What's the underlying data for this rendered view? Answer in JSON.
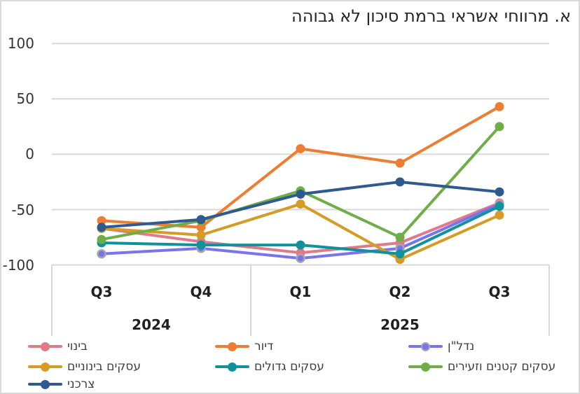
{
  "title": "א. מרווחי אשראי ברמת סיכון לא גבוהה",
  "chart_data": {
    "type": "line",
    "categories": [
      "Q3",
      "Q4",
      "Q1",
      "Q2",
      "Q3"
    ],
    "year_groups": [
      {
        "label": "2024",
        "span": 2
      },
      {
        "label": "2025",
        "span": 3
      }
    ],
    "y_ticks": [
      100,
      50,
      0,
      -50,
      -100
    ],
    "ylim": [
      -100,
      100
    ],
    "grid": true,
    "legend_position": "bottom",
    "series": [
      {
        "name": "בינוי",
        "color": "#e07a8b",
        "values": [
          -67,
          -79,
          -89,
          -80,
          -44
        ]
      },
      {
        "name": "דיור",
        "color": "#ed7d31",
        "values": [
          -60,
          -66,
          5,
          -8,
          43
        ]
      },
      {
        "name": "נדל\"ן",
        "color": "#7a73f0",
        "ring": "#a6a6a6",
        "values": [
          -90,
          -85,
          -94,
          -85,
          -45
        ]
      },
      {
        "name": "עסקים בינוניים",
        "color": "#d59b25",
        "values": [
          -67,
          -73,
          -45,
          -95,
          -55
        ]
      },
      {
        "name": "עסקים גדולים",
        "color": "#0f929c",
        "values": [
          -80,
          -82,
          -82,
          -90,
          -47
        ]
      },
      {
        "name": "עסקים קטנים וזעירים",
        "color": "#6fad47",
        "values": [
          -77,
          -60,
          -33,
          -75,
          25
        ]
      },
      {
        "name": "צרכני",
        "color": "#2e5a8f",
        "values": [
          -66,
          -59,
          -36,
          -25,
          -34
        ]
      }
    ],
    "colors": {
      "grid": "#d9d9d9",
      "axis_box": "#d9d9d9",
      "tick_text": "#333333",
      "title_text": "#262626"
    }
  }
}
